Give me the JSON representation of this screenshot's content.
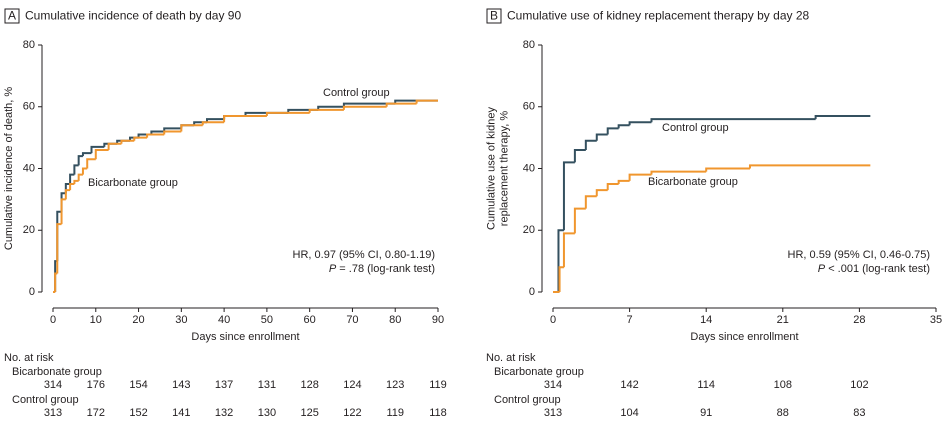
{
  "chart_data": [
    {
      "type": "line",
      "step": true,
      "panel": "A",
      "title": "Cumulative incidence of death by day 90",
      "xlabel": "Days since enrollment",
      "ylabel": "Cumulative incidence of death, %",
      "xlim": [
        0,
        90
      ],
      "xticks": [
        0,
        10,
        20,
        30,
        40,
        50,
        60,
        70,
        80,
        90
      ],
      "ylim": [
        0,
        80
      ],
      "yticks": [
        0,
        20,
        40,
        60,
        80
      ],
      "annotations": [
        "HR, 0.97 (95% CI, 0.80-1.19)",
        "P = .78 (log-rank test)"
      ],
      "series": [
        {
          "name": "Control group",
          "color": "#34505f",
          "x": [
            0,
            0.5,
            1,
            2,
            3,
            4,
            5,
            6,
            7,
            9,
            12,
            15,
            18,
            20,
            23,
            26,
            30,
            33,
            36,
            40,
            45,
            55,
            62,
            68,
            80,
            90
          ],
          "values": [
            0,
            10,
            26,
            32,
            35,
            38,
            41,
            44,
            45,
            47,
            48,
            49,
            50,
            51,
            52,
            53,
            54,
            55,
            56,
            57,
            58,
            59,
            60,
            61,
            62,
            62
          ]
        },
        {
          "name": "Bicarbonate group",
          "color": "#f0962e",
          "x": [
            0,
            0.5,
            1,
            2,
            3,
            4,
            5,
            6,
            7,
            8,
            10,
            13,
            16,
            19,
            22,
            26,
            30,
            35,
            40,
            50,
            60,
            68,
            78,
            85,
            90
          ],
          "values": [
            0,
            6,
            22,
            30,
            33,
            35,
            36,
            38,
            40,
            43,
            46,
            48,
            49,
            50,
            51,
            52,
            54,
            55,
            57,
            58,
            59,
            60,
            61,
            62,
            62
          ]
        }
      ],
      "at_risk": {
        "title": "No. at risk",
        "rows": [
          {
            "name": "Bicarbonate group",
            "values": [
              314,
              176,
              154,
              143,
              137,
              131,
              128,
              124,
              123,
              119
            ]
          },
          {
            "name": "Control group",
            "values": [
              313,
              172,
              152,
              141,
              132,
              130,
              125,
              122,
              119,
              118
            ]
          }
        ]
      }
    },
    {
      "type": "line",
      "step": true,
      "panel": "B",
      "title": "Cumulative use of kidney replacement therapy by day 28",
      "xlabel": "Days since enrollment",
      "ylabel": [
        "Cumulative use of kidney",
        "replacement therapy, %"
      ],
      "xlim": [
        0,
        35
      ],
      "xticks": [
        0,
        7,
        14,
        21,
        28,
        35
      ],
      "ylim": [
        0,
        80
      ],
      "yticks": [
        0,
        20,
        40,
        60,
        80
      ],
      "annotations": [
        "HR, 0.59 (95% CI, 0.46-0.75)",
        "P < .001 (log-rank test)"
      ],
      "series": [
        {
          "name": "Control group",
          "color": "#34505f",
          "x": [
            0,
            0.5,
            1,
            2,
            3,
            4,
            5,
            6,
            7,
            9,
            24,
            29
          ],
          "values": [
            0,
            20,
            42,
            46,
            49,
            51,
            53,
            54,
            55,
            56,
            57,
            57
          ]
        },
        {
          "name": "Bicarbonate group",
          "color": "#f0962e",
          "x": [
            0,
            0.6,
            1,
            2,
            3,
            4,
            5,
            6,
            7,
            9,
            14,
            18,
            29
          ],
          "values": [
            0,
            8,
            19,
            27,
            31,
            33,
            35,
            36,
            38,
            39,
            40,
            41,
            41
          ]
        }
      ],
      "at_risk": {
        "title": "No. at risk",
        "rows": [
          {
            "name": "Bicarbonate group",
            "values": [
              314,
              142,
              114,
              108,
              102
            ]
          },
          {
            "name": "Control group",
            "values": [
              313,
              104,
              91,
              88,
              83
            ]
          }
        ]
      }
    }
  ]
}
